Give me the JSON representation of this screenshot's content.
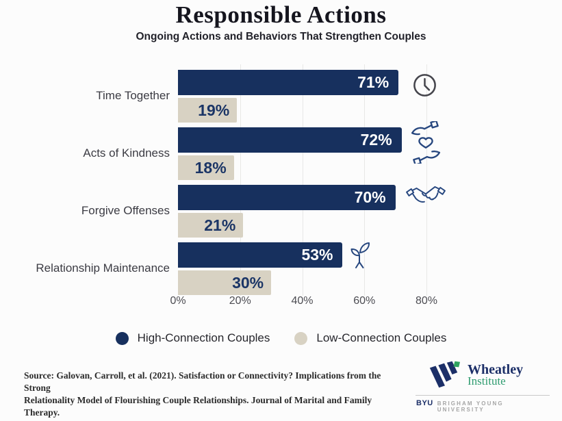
{
  "header": {
    "title": "Responsible Actions",
    "subtitle": "Ongoing Actions and Behaviors That Strengthen Couples"
  },
  "chart_data": {
    "type": "bar",
    "orientation": "horizontal",
    "title": "Responsible Actions",
    "subtitle": "Ongoing Actions and Behaviors That Strengthen Couples",
    "categories": [
      "Time Together",
      "Acts of Kindness",
      "Forgive Offenses",
      "Relationship Maintenance"
    ],
    "series": [
      {
        "name": "High-Connection Couples",
        "color": "#17305e",
        "values": [
          71,
          72,
          70,
          53
        ]
      },
      {
        "name": "Low-Connection Couples",
        "color": "#d8d2c3",
        "values": [
          19,
          18,
          21,
          30
        ]
      }
    ],
    "value_suffix": "%",
    "xlim": [
      0,
      80
    ],
    "x_ticks": [
      "0%",
      "20%",
      "40%",
      "60%",
      "80%"
    ],
    "grid": true,
    "legend_position": "bottom",
    "row_icons": [
      "clock",
      "hands-holding-heart",
      "handshake",
      "sprout"
    ]
  },
  "legend": {
    "items": [
      {
        "label": "High-Connection Couples",
        "color": "#17305e"
      },
      {
        "label": "Low-Connection Couples",
        "color": "#d8d2c3"
      }
    ]
  },
  "footer": {
    "source_line1": "Source: Galovan, Carroll, et al. (2021). Satisfaction or Connectivity? Implications from the Strong",
    "source_line2": "Relationality Model of Flourishing Couple Relationships. Journal of Marital and Family Therapy.",
    "logo": {
      "name_line1": "Wheatley",
      "name_line2": "Institute",
      "byu": "BYU",
      "university": "BRIGHAM YOUNG UNIVERSITY"
    }
  },
  "colors": {
    "navy": "#17305e",
    "beige": "#d8d2c3",
    "icon_navy": "#27477f",
    "icon_gray": "#45454c",
    "logo_green": "#2fa360"
  }
}
